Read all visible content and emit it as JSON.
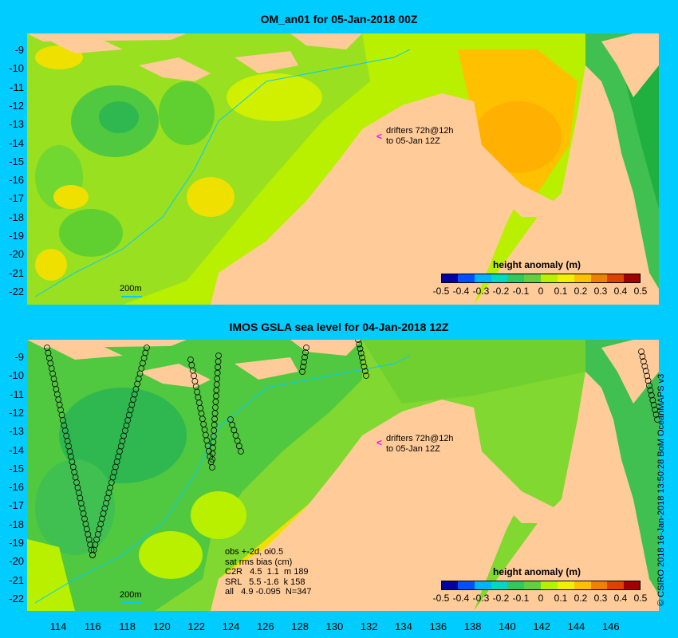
{
  "top_panel": {
    "title": "OM_an01 for 05-Jan-2018 00Z",
    "annotation_line1": "drifters 72h@12h",
    "annotation_line2": "to 05-Jan 12Z",
    "scale_label": "200m",
    "colorbar_title": "height anomaly (m)"
  },
  "bottom_panel": {
    "title": "IMOS GSLA sea level  for 04-Jan-2018 12Z",
    "annotation_line1": "drifters 72h@12h",
    "annotation_line2": "to 05-Jan 12Z",
    "scale_label": "200m",
    "colorbar_title": "height anomaly (m)",
    "stats": {
      "line1": "obs +-2d, oi0.5",
      "line2": "sat rms bias (cm)",
      "line3": "C2R   4.5  1.1  m 189",
      "line4": "SRL   5.5 -1.6  k 158",
      "line5": "all   4.9 -0.095  N=347"
    }
  },
  "colorbar_ticks": [
    "-0.5",
    "-0.4",
    "-0.3",
    "-0.2",
    "-0.1",
    "0",
    "0.1",
    "0.2",
    "0.3",
    "0.4",
    "0.5"
  ],
  "colorbar_colors": [
    "#0000a0",
    "#0050ff",
    "#00b4ff",
    "#00d8c0",
    "#30c860",
    "#60d040",
    "#b8f000",
    "#f0f000",
    "#ffc000",
    "#f08000",
    "#e04000",
    "#a00000"
  ],
  "y_ticks": [
    "-9",
    "-10",
    "-11",
    "-12",
    "-13",
    "-14",
    "-15",
    "-16",
    "-17",
    "-18",
    "-19",
    "-20",
    "-21",
    "-22"
  ],
  "x_ticks": [
    "114",
    "116",
    "118",
    "120",
    "122",
    "124",
    "126",
    "128",
    "130",
    "132",
    "134",
    "136",
    "138",
    "140",
    "142",
    "144",
    "146"
  ],
  "credit": "© CSIRO 2018  16-Jan-2018 13:50:28 BoM OceanMAPS v3",
  "colors": {
    "land": "#ffcc99",
    "ocean_main": "#ccf000",
    "background": "#00ccff"
  }
}
